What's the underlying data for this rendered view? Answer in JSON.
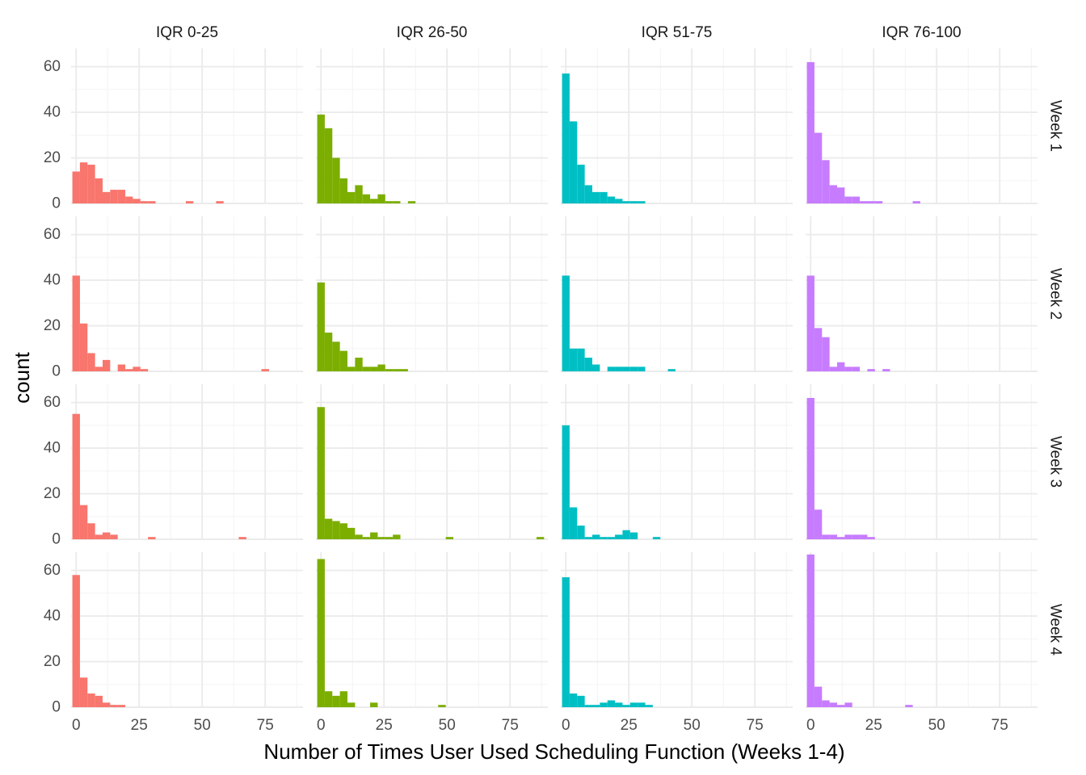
{
  "chart_data": {
    "type": "bar",
    "subtype": "faceted-histogram",
    "xlabel": "Number of Times User Used Scheduling Function (Weeks 1-4)",
    "ylabel": "count",
    "xlim": [
      -2,
      90
    ],
    "ylim": [
      0,
      68
    ],
    "x_ticks": [
      0,
      25,
      50,
      75
    ],
    "y_ticks": [
      0,
      20,
      40,
      60
    ],
    "bin_width": 3,
    "grid": true,
    "legend": "none",
    "columns": [
      "IQR 0-25",
      "IQR 26-50",
      "IQR 51-75",
      "IQR 76-100"
    ],
    "rows": [
      "Week 1",
      "Week 2",
      "Week 3",
      "Week 4"
    ],
    "colors": [
      "#F8766D",
      "#7CAE00",
      "#00BFC4",
      "#C77CFF"
    ],
    "panels": [
      [
        {
          "bins": [
            [
              -1.5,
              14
            ],
            [
              1.5,
              18
            ],
            [
              4.5,
              17
            ],
            [
              7.5,
              11
            ],
            [
              10.5,
              5
            ],
            [
              13.5,
              6
            ],
            [
              16.5,
              6
            ],
            [
              19.5,
              3
            ],
            [
              22.5,
              2
            ],
            [
              25.5,
              1
            ],
            [
              28.5,
              1
            ],
            [
              43.5,
              1
            ],
            [
              55.5,
              1
            ]
          ]
        },
        {
          "bins": [
            [
              -1.5,
              39
            ],
            [
              1.5,
              33
            ],
            [
              4.5,
              20
            ],
            [
              7.5,
              11
            ],
            [
              10.5,
              5
            ],
            [
              13.5,
              8
            ],
            [
              16.5,
              4
            ],
            [
              19.5,
              2
            ],
            [
              22.5,
              4
            ],
            [
              25.5,
              1
            ],
            [
              28.5,
              1
            ],
            [
              34.5,
              1
            ]
          ]
        },
        {
          "bins": [
            [
              -1.5,
              57
            ],
            [
              1.5,
              36
            ],
            [
              4.5,
              17
            ],
            [
              7.5,
              8
            ],
            [
              10.5,
              5
            ],
            [
              13.5,
              5
            ],
            [
              16.5,
              3
            ],
            [
              19.5,
              2
            ],
            [
              22.5,
              1
            ],
            [
              25.5,
              1
            ],
            [
              28.5,
              1
            ]
          ]
        },
        {
          "bins": [
            [
              -1.5,
              62
            ],
            [
              1.5,
              31
            ],
            [
              4.5,
              19
            ],
            [
              7.5,
              8
            ],
            [
              10.5,
              7
            ],
            [
              13.5,
              3
            ],
            [
              16.5,
              3
            ],
            [
              19.5,
              1
            ],
            [
              22.5,
              1
            ],
            [
              25.5,
              1
            ],
            [
              40.5,
              1
            ]
          ]
        }
      ],
      [
        {
          "bins": [
            [
              -1.5,
              42
            ],
            [
              1.5,
              21
            ],
            [
              4.5,
              8
            ],
            [
              7.5,
              2
            ],
            [
              10.5,
              5
            ],
            [
              16.5,
              3
            ],
            [
              19.5,
              1
            ],
            [
              22.5,
              2
            ],
            [
              25.5,
              1
            ],
            [
              73.5,
              1
            ]
          ]
        },
        {
          "bins": [
            [
              -1.5,
              39
            ],
            [
              1.5,
              17
            ],
            [
              4.5,
              13
            ],
            [
              7.5,
              9
            ],
            [
              10.5,
              2
            ],
            [
              13.5,
              6
            ],
            [
              16.5,
              2
            ],
            [
              19.5,
              2
            ],
            [
              22.5,
              3
            ],
            [
              25.5,
              1
            ],
            [
              28.5,
              1
            ],
            [
              31.5,
              1
            ]
          ]
        },
        {
          "bins": [
            [
              -1.5,
              42
            ],
            [
              1.5,
              10
            ],
            [
              4.5,
              10
            ],
            [
              7.5,
              6
            ],
            [
              10.5,
              3
            ],
            [
              16.5,
              2
            ],
            [
              19.5,
              2
            ],
            [
              22.5,
              2
            ],
            [
              25.5,
              2
            ],
            [
              28.5,
              2
            ],
            [
              40.5,
              1
            ]
          ]
        },
        {
          "bins": [
            [
              -1.5,
              42
            ],
            [
              1.5,
              19
            ],
            [
              4.5,
              15
            ],
            [
              7.5,
              2
            ],
            [
              10.5,
              4
            ],
            [
              13.5,
              2
            ],
            [
              16.5,
              2
            ],
            [
              22.5,
              1
            ],
            [
              28.5,
              1
            ]
          ]
        }
      ],
      [
        {
          "bins": [
            [
              -1.5,
              55
            ],
            [
              1.5,
              15
            ],
            [
              4.5,
              7
            ],
            [
              7.5,
              2
            ],
            [
              10.5,
              3
            ],
            [
              13.5,
              2
            ],
            [
              28.5,
              1
            ],
            [
              64.5,
              1
            ]
          ]
        },
        {
          "bins": [
            [
              -1.5,
              58
            ],
            [
              1.5,
              9
            ],
            [
              4.5,
              8
            ],
            [
              7.5,
              7
            ],
            [
              10.5,
              5
            ],
            [
              13.5,
              2
            ],
            [
              16.5,
              1
            ],
            [
              19.5,
              3
            ],
            [
              22.5,
              1
            ],
            [
              25.5,
              1
            ],
            [
              28.5,
              2
            ],
            [
              49.5,
              1
            ],
            [
              85.5,
              1
            ]
          ]
        },
        {
          "bins": [
            [
              -1.5,
              50
            ],
            [
              1.5,
              14
            ],
            [
              4.5,
              6
            ],
            [
              7.5,
              1
            ],
            [
              10.5,
              2
            ],
            [
              13.5,
              1
            ],
            [
              16.5,
              1
            ],
            [
              19.5,
              2
            ],
            [
              22.5,
              4
            ],
            [
              25.5,
              3
            ],
            [
              34.5,
              1
            ]
          ]
        },
        {
          "bins": [
            [
              -1.5,
              62
            ],
            [
              1.5,
              13
            ],
            [
              4.5,
              2
            ],
            [
              7.5,
              2
            ],
            [
              10.5,
              1
            ],
            [
              13.5,
              2
            ],
            [
              16.5,
              2
            ],
            [
              19.5,
              2
            ],
            [
              22.5,
              1
            ]
          ]
        }
      ],
      [
        {
          "bins": [
            [
              -1.5,
              58
            ],
            [
              1.5,
              13
            ],
            [
              4.5,
              6
            ],
            [
              7.5,
              5
            ],
            [
              10.5,
              2
            ],
            [
              13.5,
              1
            ],
            [
              16.5,
              1
            ]
          ]
        },
        {
          "bins": [
            [
              -1.5,
              65
            ],
            [
              1.5,
              7
            ],
            [
              4.5,
              5
            ],
            [
              7.5,
              7
            ],
            [
              10.5,
              2
            ],
            [
              19.5,
              2
            ],
            [
              46.5,
              1
            ]
          ]
        },
        {
          "bins": [
            [
              -1.5,
              57
            ],
            [
              1.5,
              6
            ],
            [
              4.5,
              5
            ],
            [
              7.5,
              1
            ],
            [
              10.5,
              1
            ],
            [
              13.5,
              2
            ],
            [
              16.5,
              3
            ],
            [
              19.5,
              2
            ],
            [
              22.5,
              1
            ],
            [
              25.5,
              2
            ],
            [
              28.5,
              2
            ],
            [
              31.5,
              1
            ]
          ]
        },
        {
          "bins": [
            [
              -1.5,
              67
            ],
            [
              1.5,
              9
            ],
            [
              4.5,
              3
            ],
            [
              7.5,
              2
            ],
            [
              10.5,
              1
            ],
            [
              13.5,
              2
            ],
            [
              37.5,
              1
            ]
          ]
        }
      ]
    ]
  }
}
